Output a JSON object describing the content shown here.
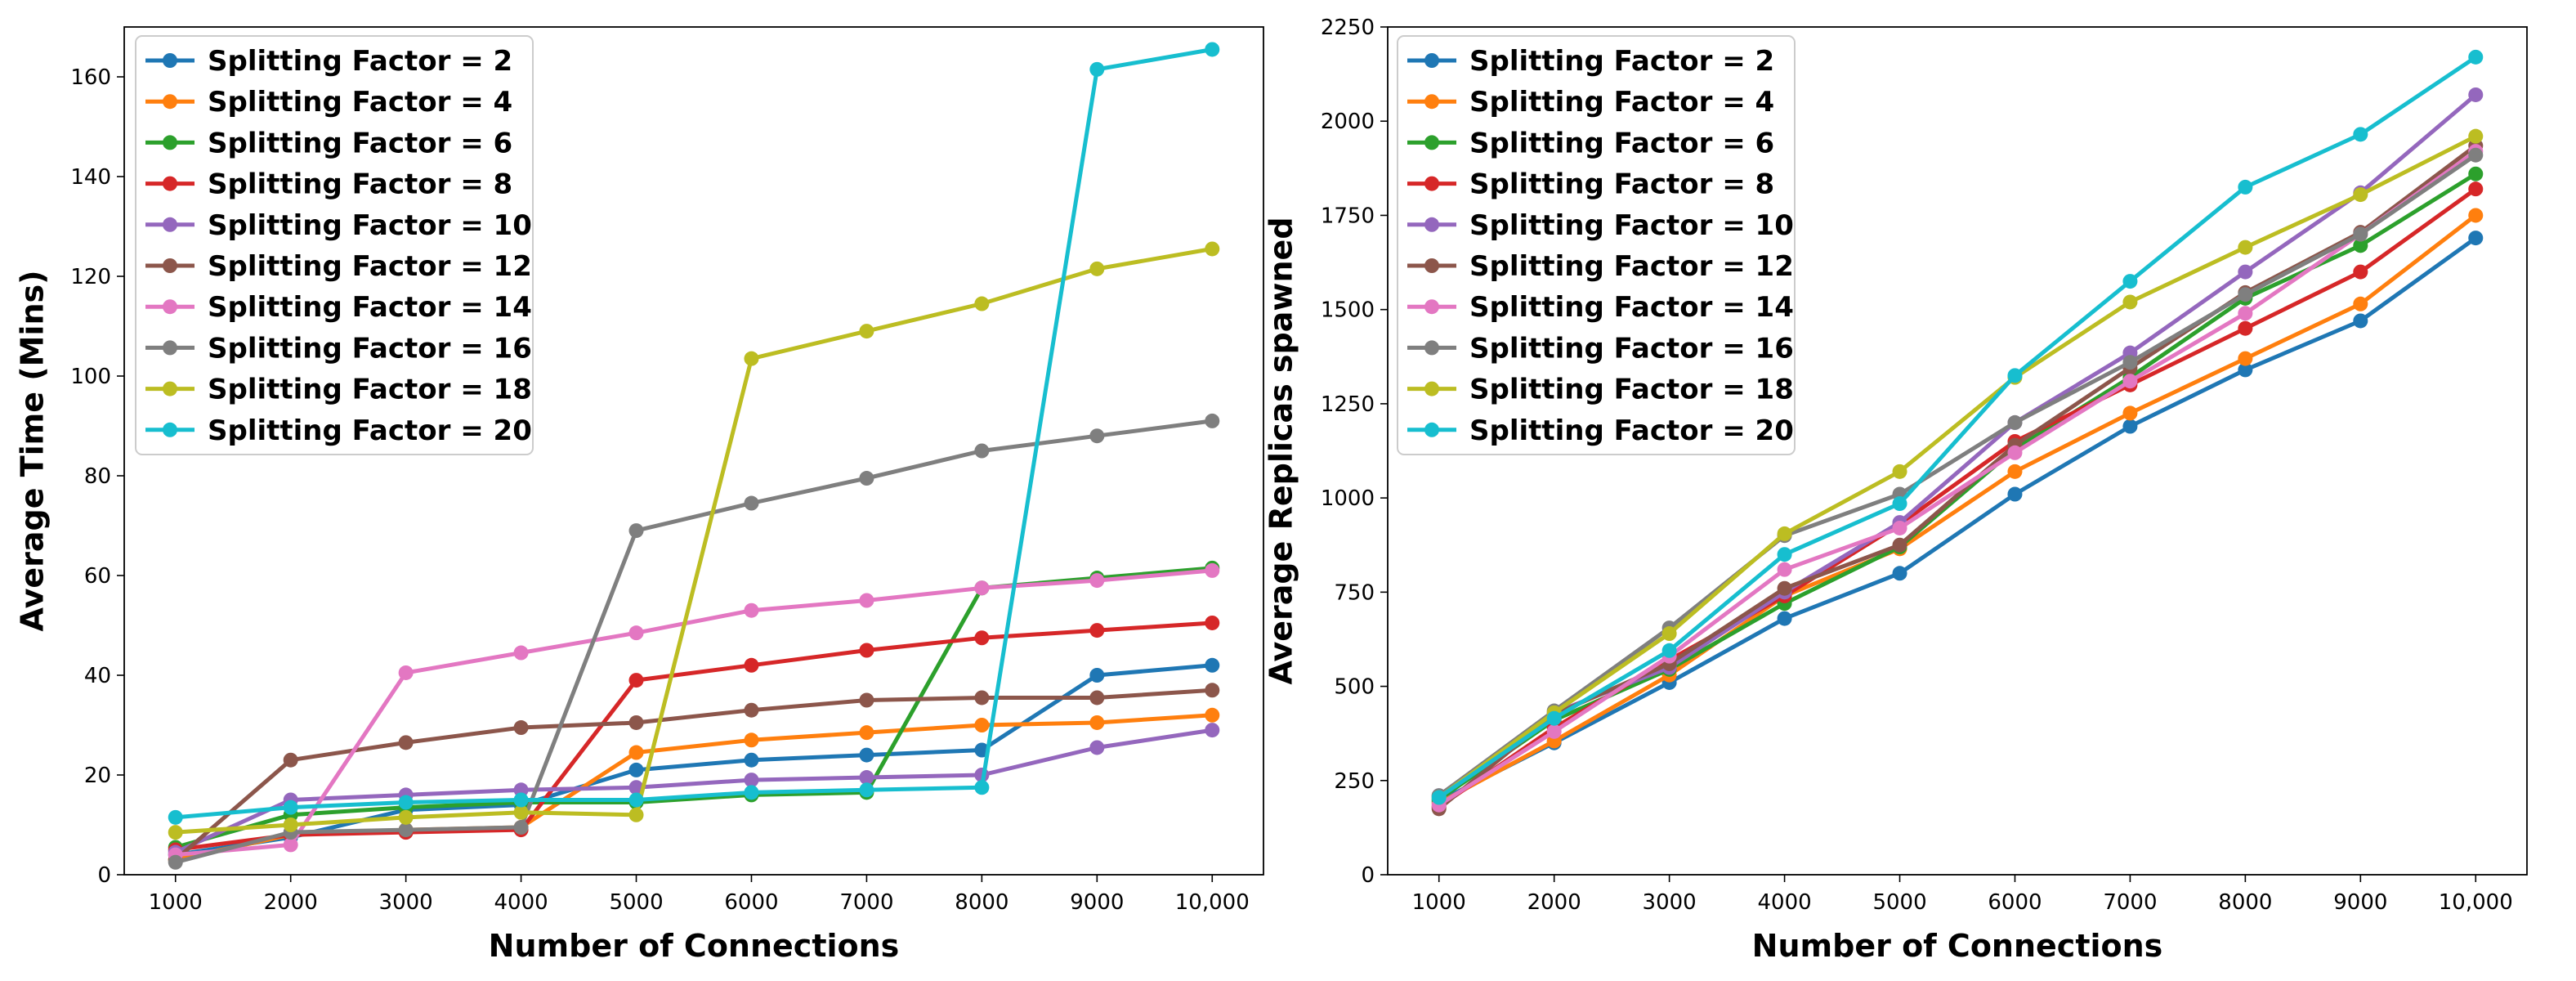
{
  "chart_data": [
    {
      "type": "line",
      "xlabel": "Number of Connections",
      "ylabel": "Average Time (Mins)",
      "categories": [
        "1000",
        "2000",
        "3000",
        "4000",
        "5000",
        "6000",
        "7000",
        "8000",
        "9000",
        "10,000"
      ],
      "ylim": [
        0,
        170
      ],
      "yticks": [
        "0",
        "20",
        "40",
        "60",
        "80",
        "100",
        "120",
        "140",
        "160"
      ],
      "legend_position": "upper-left",
      "series": [
        {
          "name": "Splitting Factor = 2",
          "color": "#1f77b4",
          "values": [
            4,
            7.5,
            13,
            14,
            21,
            23,
            24,
            25,
            40,
            42
          ]
        },
        {
          "name": "Splitting Factor = 4",
          "color": "#ff7f0e",
          "values": [
            3,
            8,
            9,
            9.5,
            24.5,
            27,
            28.5,
            30,
            30.5,
            32
          ]
        },
        {
          "name": "Splitting Factor = 6",
          "color": "#2ca02c",
          "values": [
            5.5,
            12,
            13.5,
            14.5,
            14.5,
            16,
            16.5,
            57.5,
            59.5,
            61.5
          ]
        },
        {
          "name": "Splitting Factor = 8",
          "color": "#d62728",
          "values": [
            5,
            8,
            8.5,
            9,
            39,
            42,
            45,
            47.5,
            49,
            50.5
          ]
        },
        {
          "name": "Splitting Factor = 10",
          "color": "#9467bd",
          "values": [
            4.5,
            15,
            16,
            17,
            17.5,
            19,
            19.5,
            20,
            25.5,
            29
          ]
        },
        {
          "name": "Splitting Factor = 12",
          "color": "#8c564b",
          "values": [
            3,
            23,
            26.5,
            29.5,
            30.5,
            33,
            35,
            35.5,
            35.5,
            37
          ]
        },
        {
          "name": "Splitting Factor = 14",
          "color": "#e377c2",
          "values": [
            4,
            6,
            40.5,
            44.5,
            48.5,
            53,
            55,
            57.5,
            59,
            61
          ]
        },
        {
          "name": "Splitting Factor = 16",
          "color": "#7f7f7f",
          "values": [
            2.5,
            8.5,
            9,
            9.5,
            69,
            74.5,
            79.5,
            85,
            88,
            91
          ]
        },
        {
          "name": "Splitting Factor = 18",
          "color": "#bcbd22",
          "values": [
            8.5,
            10,
            11.5,
            12.5,
            12,
            103.5,
            109,
            114.5,
            121.5,
            125.5
          ]
        },
        {
          "name": "Splitting Factor = 20",
          "color": "#17becf",
          "values": [
            11.5,
            13.5,
            14.5,
            15,
            15,
            16.5,
            17,
            17.5,
            161.5,
            165.5
          ]
        }
      ]
    },
    {
      "type": "line",
      "xlabel": "Number of Connections",
      "ylabel": "Average Replicas spawned",
      "categories": [
        "1000",
        "2000",
        "3000",
        "4000",
        "5000",
        "6000",
        "7000",
        "8000",
        "9000",
        "10,000"
      ],
      "ylim": [
        0,
        2250
      ],
      "yticks": [
        "0",
        "250",
        "500",
        "750",
        "1000",
        "1250",
        "1500",
        "1750",
        "2000",
        "2250"
      ],
      "legend_position": "upper-left",
      "series": [
        {
          "name": "Splitting Factor = 2",
          "color": "#1f77b4",
          "values": [
            195,
            350,
            510,
            680,
            800,
            1010,
            1190,
            1340,
            1470,
            1690
          ]
        },
        {
          "name": "Splitting Factor = 4",
          "color": "#ff7f0e",
          "values": [
            190,
            355,
            530,
            740,
            865,
            1070,
            1225,
            1370,
            1515,
            1750
          ]
        },
        {
          "name": "Splitting Factor = 6",
          "color": "#2ca02c",
          "values": [
            200,
            410,
            545,
            720,
            870,
            1130,
            1320,
            1530,
            1670,
            1860
          ]
        },
        {
          "name": "Splitting Factor = 8",
          "color": "#d62728",
          "values": [
            180,
            390,
            570,
            740,
            930,
            1150,
            1300,
            1450,
            1600,
            1820
          ]
        },
        {
          "name": "Splitting Factor = 10",
          "color": "#9467bd",
          "values": [
            210,
            430,
            550,
            750,
            935,
            1200,
            1385,
            1600,
            1810,
            2070
          ]
        },
        {
          "name": "Splitting Factor = 12",
          "color": "#8c564b",
          "values": [
            175,
            425,
            560,
            760,
            875,
            1140,
            1345,
            1545,
            1705,
            1935
          ]
        },
        {
          "name": "Splitting Factor = 14",
          "color": "#e377c2",
          "values": [
            185,
            380,
            580,
            810,
            920,
            1120,
            1310,
            1490,
            1700,
            1920
          ]
        },
        {
          "name": "Splitting Factor = 16",
          "color": "#7f7f7f",
          "values": [
            210,
            435,
            655,
            900,
            1010,
            1200,
            1360,
            1540,
            1700,
            1910
          ]
        },
        {
          "name": "Splitting Factor = 18",
          "color": "#bcbd22",
          "values": [
            205,
            430,
            640,
            905,
            1070,
            1320,
            1520,
            1665,
            1805,
            1960
          ]
        },
        {
          "name": "Splitting Factor = 20",
          "color": "#17becf",
          "values": [
            205,
            415,
            595,
            850,
            985,
            1325,
            1575,
            1825,
            1965,
            2170
          ]
        }
      ]
    }
  ]
}
